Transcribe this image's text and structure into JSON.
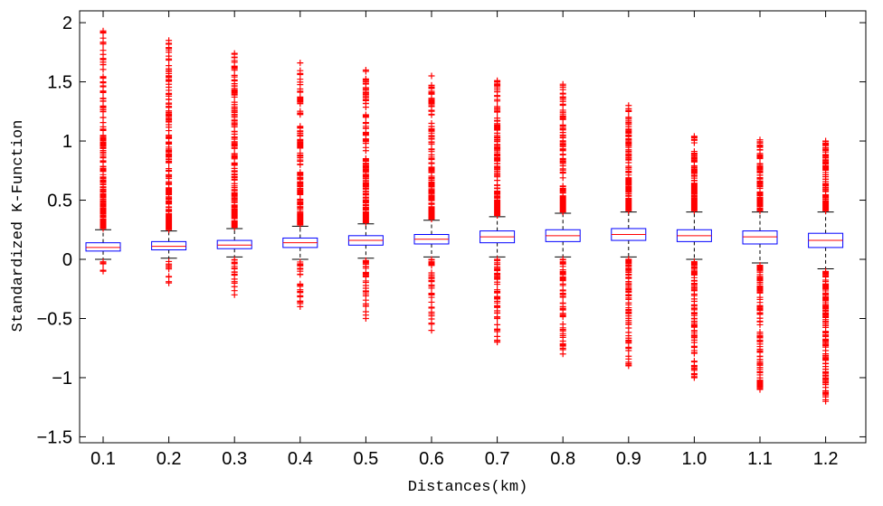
{
  "chart_data": {
    "type": "boxplot",
    "title": "",
    "xlabel": "Distances(km)",
    "ylabel": "Standardized K-Function",
    "categories": [
      "0.1",
      "0.2",
      "0.3",
      "0.4",
      "0.5",
      "0.6",
      "0.7",
      "0.8",
      "0.9",
      "1.0",
      "1.1",
      "1.2"
    ],
    "ylim": [
      -1.55,
      2.1
    ],
    "yticks": [
      -1.5,
      -1,
      -0.5,
      0,
      0.5,
      1,
      1.5,
      2
    ],
    "ytick_labels": [
      "−1.5",
      "−1",
      "−0.5",
      "0",
      "0.5",
      "1",
      "1.5",
      "2"
    ],
    "grid": false,
    "boxes": [
      {
        "category": "0.1",
        "whisker_low": 0.0,
        "q1": 0.07,
        "median": 0.1,
        "q3": 0.14,
        "whisker_high": 0.25,
        "outlier_high_max": 1.93,
        "outlier_low_min": -0.1
      },
      {
        "category": "0.2",
        "whisker_low": 0.01,
        "q1": 0.08,
        "median": 0.11,
        "q3": 0.15,
        "whisker_high": 0.24,
        "outlier_high_max": 1.85,
        "outlier_low_min": -0.2
      },
      {
        "category": "0.3",
        "whisker_low": 0.02,
        "q1": 0.09,
        "median": 0.12,
        "q3": 0.16,
        "whisker_high": 0.26,
        "outlier_high_max": 1.74,
        "outlier_low_min": -0.3
      },
      {
        "category": "0.4",
        "whisker_low": 0.0,
        "q1": 0.1,
        "median": 0.14,
        "q3": 0.18,
        "whisker_high": 0.28,
        "outlier_high_max": 1.66,
        "outlier_low_min": -0.4
      },
      {
        "category": "0.5",
        "whisker_low": 0.01,
        "q1": 0.12,
        "median": 0.16,
        "q3": 0.2,
        "whisker_high": 0.3,
        "outlier_high_max": 1.6,
        "outlier_low_min": -0.5
      },
      {
        "category": "0.6",
        "whisker_low": 0.02,
        "q1": 0.13,
        "median": 0.17,
        "q3": 0.21,
        "whisker_high": 0.33,
        "outlier_high_max": 1.55,
        "outlier_low_min": -0.6
      },
      {
        "category": "0.7",
        "whisker_low": 0.02,
        "q1": 0.14,
        "median": 0.19,
        "q3": 0.24,
        "whisker_high": 0.36,
        "outlier_high_max": 1.51,
        "outlier_low_min": -0.7
      },
      {
        "category": "0.8",
        "whisker_low": 0.02,
        "q1": 0.15,
        "median": 0.2,
        "q3": 0.25,
        "whisker_high": 0.39,
        "outlier_high_max": 1.48,
        "outlier_low_min": -0.8
      },
      {
        "category": "0.9",
        "whisker_low": 0.02,
        "q1": 0.16,
        "median": 0.21,
        "q3": 0.26,
        "whisker_high": 0.4,
        "outlier_high_max": 1.3,
        "outlier_low_min": -0.9
      },
      {
        "category": "1.0",
        "whisker_low": 0.0,
        "q1": 0.15,
        "median": 0.2,
        "q3": 0.25,
        "whisker_high": 0.4,
        "outlier_high_max": 1.04,
        "outlier_low_min": -1.0
      },
      {
        "category": "1.1",
        "whisker_low": -0.03,
        "q1": 0.13,
        "median": 0.19,
        "q3": 0.24,
        "whisker_high": 0.4,
        "outlier_high_max": 1.01,
        "outlier_low_min": -1.1
      },
      {
        "category": "1.2",
        "whisker_low": -0.08,
        "q1": 0.1,
        "median": 0.16,
        "q3": 0.22,
        "whisker_high": 0.4,
        "outlier_high_max": 1.0,
        "outlier_low_min": -1.2
      }
    ],
    "colors": {
      "box": "#0000ff",
      "median": "#ff0000",
      "whisker": "#000000",
      "outlier": "#ff0000",
      "frame": "#000000"
    }
  }
}
